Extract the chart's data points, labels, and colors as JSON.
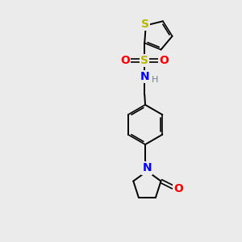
{
  "background_color": "#ebebeb",
  "bond_color": "#000000",
  "sulfur_color": "#b8b800",
  "oxygen_color": "#ff0000",
  "nitrogen_color": "#0000ff",
  "hydrogen_color": "#708090",
  "figsize": [
    3.0,
    3.0
  ],
  "dpi": 100,
  "xlim": [
    0,
    10
  ],
  "ylim": [
    0,
    10
  ]
}
